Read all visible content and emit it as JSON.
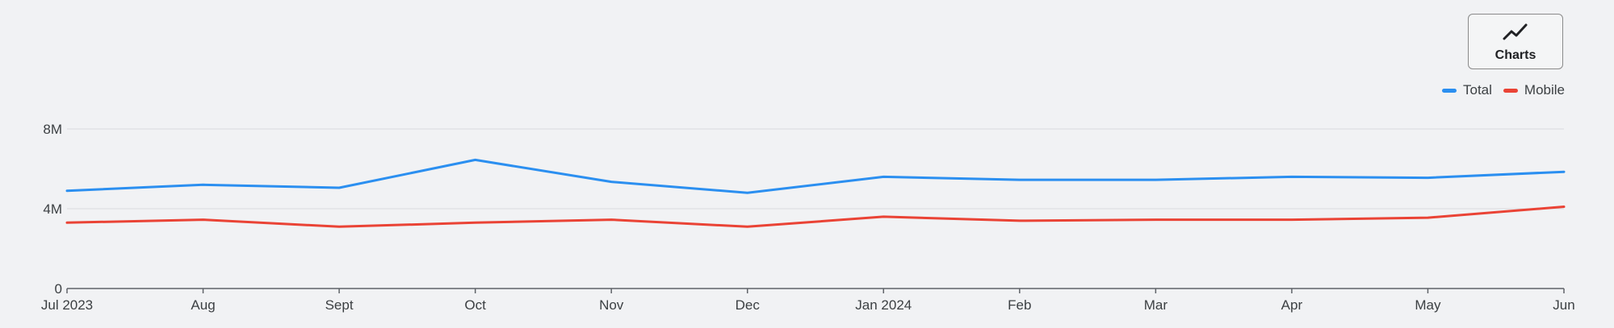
{
  "toolbar": {
    "charts_label": "Charts",
    "charts_icon": "line-chart-icon"
  },
  "chart_data": {
    "type": "line",
    "categories": [
      "Jul 2023",
      "Aug",
      "Sept",
      "Oct",
      "Nov",
      "Dec",
      "Jan 2024",
      "Feb",
      "Mar",
      "Apr",
      "May",
      "Jun"
    ],
    "y_ticks": [
      {
        "value": 0,
        "label": "0"
      },
      {
        "value": 4000000,
        "label": "4M"
      },
      {
        "value": 8000000,
        "label": "8M"
      }
    ],
    "ylim": [
      0,
      8000000
    ],
    "grid": true,
    "legend_position": "top-right",
    "series": [
      {
        "name": "Total",
        "color": "#2b8ff0",
        "values": [
          4900000,
          5200000,
          5050000,
          6450000,
          5350000,
          4800000,
          5600000,
          5450000,
          5450000,
          5600000,
          5550000,
          5850000
        ]
      },
      {
        "name": "Mobile",
        "color": "#ea4335",
        "values": [
          3300000,
          3450000,
          3100000,
          3300000,
          3450000,
          3100000,
          3600000,
          3400000,
          3450000,
          3450000,
          3550000,
          4100000
        ]
      }
    ]
  }
}
